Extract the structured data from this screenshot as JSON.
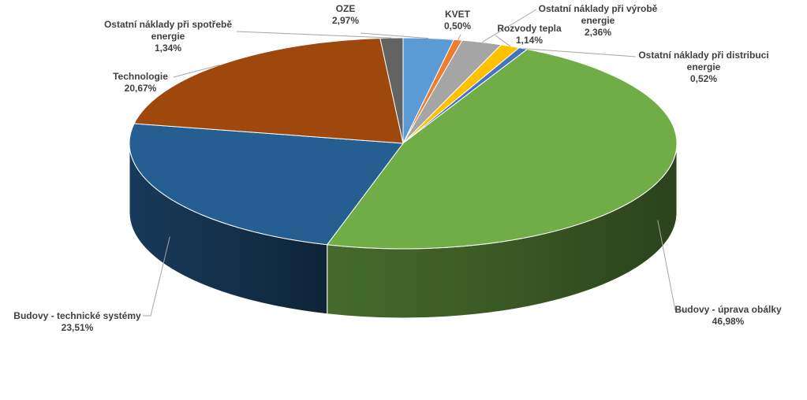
{
  "chart_data": {
    "type": "pie",
    "variant": "3d",
    "title": "",
    "start_angle_deg": -90,
    "direction": "clockwise",
    "legend": "none",
    "data_labels": "category-and-percent",
    "slices": [
      {
        "name": "OZE",
        "value": 2.97,
        "label": "2,97%",
        "color": "#5b9bd5"
      },
      {
        "name": "KVET",
        "value": 0.5,
        "label": "0,50%",
        "color": "#ed7d31"
      },
      {
        "name": "Ostatní náklady při výrobě energie",
        "value": 2.36,
        "label": "2,36%",
        "color": "#a5a5a5"
      },
      {
        "name": "Rozvody tepla",
        "value": 1.14,
        "label": "1,14%",
        "color": "#ffc000"
      },
      {
        "name": "Ostatní náklady při distribuci energie",
        "value": 0.52,
        "label": "0,52%",
        "color": "#4472c4"
      },
      {
        "name": "Budovy - úprava obálky",
        "value": 46.98,
        "label": "46,98%",
        "color": "#70ad47"
      },
      {
        "name": "Budovy - technické systémy",
        "value": 23.51,
        "label": "23,51%",
        "color": "#255e91"
      },
      {
        "name": "Technologie",
        "value": 20.67,
        "label": "20,67%",
        "color": "#9e480e"
      },
      {
        "name": "Ostatní náklady při spotřebě energie",
        "value": 1.34,
        "label": "1,34%",
        "color": "#636363"
      }
    ],
    "label_lines": [
      [
        "OZE",
        "2,97%"
      ],
      [
        "KVET",
        "0,50%"
      ],
      [
        "Ostatní náklady při výrobě",
        "energie",
        "2,36%"
      ],
      [
        "Rozvody tepla",
        "1,14%"
      ],
      [
        "Ostatní náklady při distribuci",
        "energie",
        "0,52%"
      ],
      [
        "Budovy - úprava obálky",
        "46,98%"
      ],
      [
        "Budovy - technické systémy",
        "23,51%"
      ],
      [
        "Technologie",
        "20,67%"
      ],
      [
        "Ostatní náklady při spotřebě",
        "energie",
        "1,34%"
      ]
    ]
  }
}
